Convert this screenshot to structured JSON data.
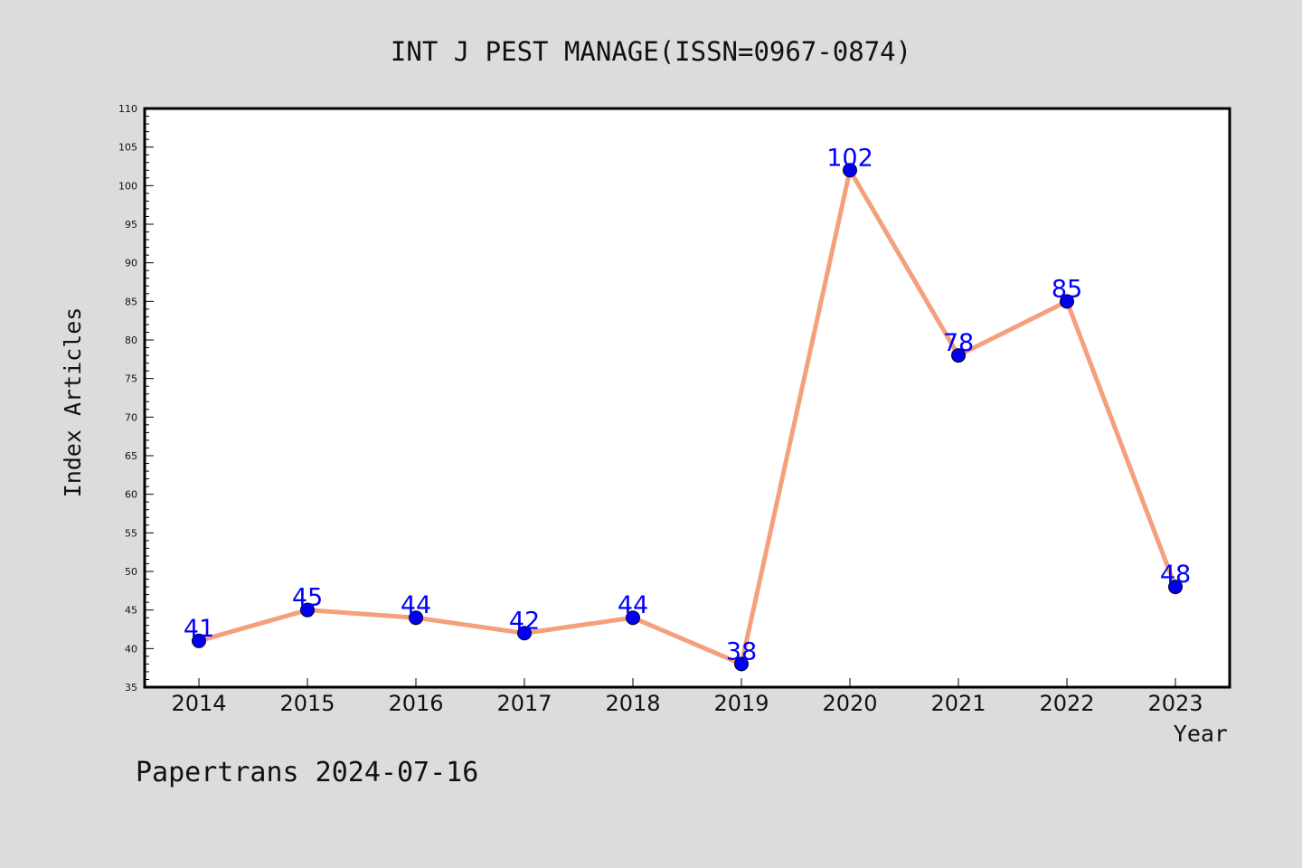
{
  "chart_data": {
    "type": "line",
    "title": "INT J PEST MANAGE(ISSN=0967-0874)",
    "xlabel": "Year",
    "ylabel": "Index Articles",
    "categories": [
      "2014",
      "2015",
      "2016",
      "2017",
      "2018",
      "2019",
      "2020",
      "2021",
      "2022",
      "2023"
    ],
    "values": [
      41,
      45,
      44,
      42,
      44,
      38,
      102,
      78,
      85,
      48
    ],
    "ylim": [
      35,
      110
    ],
    "y_major_ticks": [
      35,
      40,
      45,
      50,
      55,
      60,
      65,
      70,
      75,
      80,
      85,
      90,
      95,
      100,
      105,
      110
    ],
    "grid": false,
    "line_color": "#f4a07c",
    "marker_color": "#0000ee",
    "label_color": "#0000ff",
    "footer": "Papertrans 2024-07-16"
  }
}
